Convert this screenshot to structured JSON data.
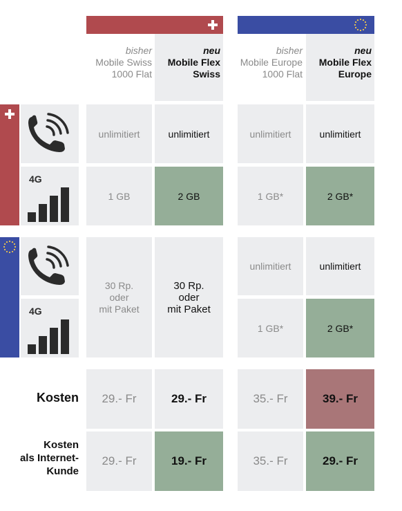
{
  "plans": {
    "swiss_old": {
      "tag": "bisher",
      "name_line1": "Mobile Swiss",
      "name_line2": "1000 Flat"
    },
    "swiss_new": {
      "tag": "neu",
      "name_line1": "Mobile Flex",
      "name_line2": "Swiss"
    },
    "europe_old": {
      "tag": "bisher",
      "name_line1": "Mobile Europe",
      "name_line2": "1000 Flat"
    },
    "europe_new": {
      "tag": "neu",
      "name_line1": "Mobile Flex",
      "name_line2": "Europe"
    }
  },
  "icons": {
    "swiss_flag": "swiss-cross-icon",
    "eu_flag": "eu-stars-icon",
    "phone": "phone-call-icon",
    "data": "4g-signal-icon",
    "data_label": "4G"
  },
  "switzerland": {
    "calls": {
      "swiss_old": "unlimitiert",
      "swiss_new": "unlimitiert",
      "europe_old": "unlimitiert",
      "europe_new": "unlimitiert"
    },
    "data": {
      "swiss_old": "1 GB",
      "swiss_new": "2 GB",
      "europe_old": "1 GB*",
      "europe_new": "2 GB*"
    }
  },
  "europe": {
    "swiss_old": {
      "line1": "30 Rp.",
      "line2": "oder",
      "line3": "mit Paket"
    },
    "swiss_new": {
      "line1": "30 Rp.",
      "line2": "oder",
      "line3": "mit Paket"
    },
    "calls": {
      "europe_old": "unlimitiert",
      "europe_new": "unlimitiert"
    },
    "data": {
      "europe_old": "1 GB*",
      "europe_new": "2 GB*"
    }
  },
  "costs": {
    "label": "Kosten",
    "swiss_old": "29.- Fr",
    "swiss_new": "29.- Fr",
    "europe_old": "35.- Fr",
    "europe_new": "39.- Fr"
  },
  "costs_internet": {
    "label_line1": "Kosten",
    "label_line2": "als Internet-",
    "label_line3": "Kunde",
    "swiss_old": "29.- Fr",
    "swiss_new": "19.- Fr",
    "europe_old": "35.- Fr",
    "europe_new": "29.- Fr"
  },
  "colors": {
    "swiss_red": "#b04a4e",
    "eu_blue": "#3a4da3",
    "eu_star": "#f2c84b",
    "cell_light": "#ecedef",
    "cell_green": "#95ae98",
    "cell_red": "#a97678",
    "icon_dark": "#2b2b2b"
  }
}
